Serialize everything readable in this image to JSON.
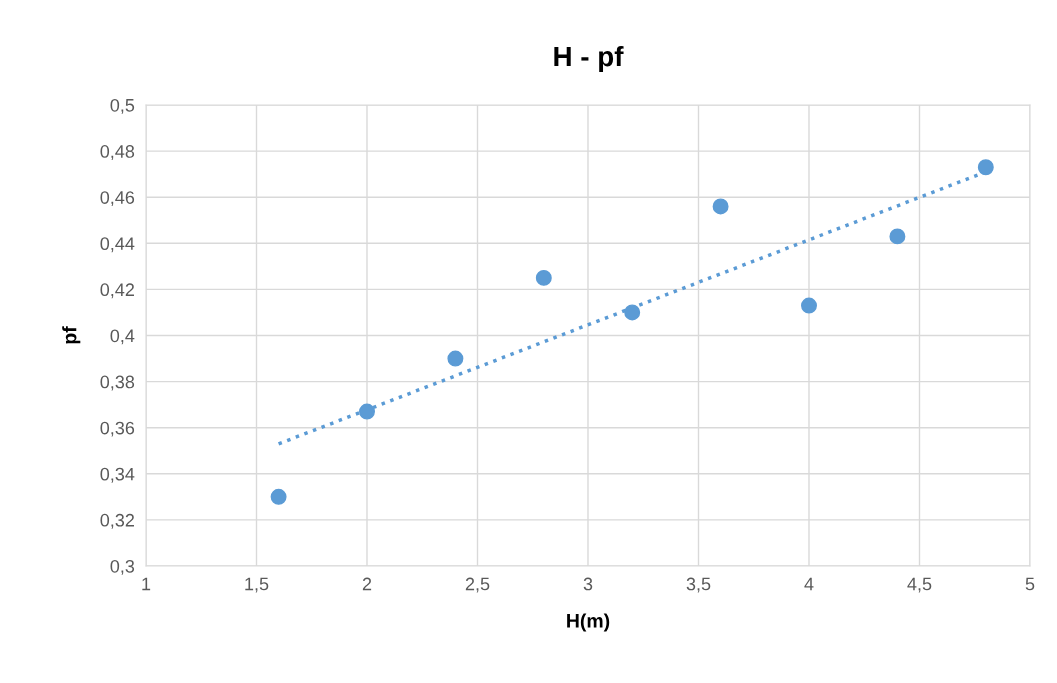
{
  "chart_data": {
    "type": "scatter",
    "title": "H - pf",
    "xlabel": "H(m)",
    "ylabel": "pf",
    "series": [
      {
        "color": "#5b9bd5",
        "marker": "circle",
        "x": [
          1.6,
          2.0,
          2.4,
          2.8,
          3.2,
          3.6,
          4.0,
          4.4,
          4.8
        ],
        "values": [
          0.33,
          0.367,
          0.39,
          0.425,
          0.41,
          0.456,
          0.413,
          0.443,
          0.473
        ]
      },
      {
        "type": "line",
        "color": "#5b9bd5",
        "line_style": "dotted",
        "x": [
          1.6,
          4.8
        ],
        "values": [
          0.353,
          0.471
        ]
      }
    ],
    "xlim": [
      1,
      5
    ],
    "xticks": [
      1,
      {
        "value": 1.5,
        "label": "1,5"
      },
      2,
      {
        "value": 2.5,
        "label": "2,5"
      },
      3,
      {
        "value": 3.5,
        "label": "3,5"
      },
      4,
      {
        "value": 4.5,
        "label": "4,5"
      },
      5
    ],
    "ylim": [
      0.3,
      0.5
    ],
    "yticks": [
      {
        "value": 0.3,
        "label": "0,3"
      },
      {
        "value": 0.32,
        "label": "0,32"
      },
      {
        "value": 0.34,
        "label": "0,34"
      },
      {
        "value": 0.36,
        "label": "0,36"
      },
      {
        "value": 0.38,
        "label": "0,38"
      },
      {
        "value": 0.4,
        "label": "0,4"
      },
      {
        "value": 0.42,
        "label": "0,42"
      },
      {
        "value": 0.44,
        "label": "0,44"
      },
      {
        "value": 0.46,
        "label": "0,46"
      },
      {
        "value": 0.48,
        "label": "0,48"
      },
      {
        "value": 0.5,
        "label": "0,5"
      }
    ],
    "grid": true
  }
}
